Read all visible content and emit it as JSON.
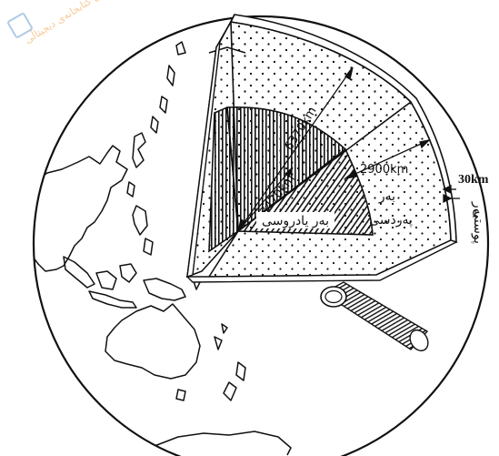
{
  "labels": {
    "core_radius": "3470km",
    "earth_radius": "6370km",
    "mantle_depth": "2900km",
    "crust_depth": "30km",
    "mantle_name_1": "بەر",
    "mantle_name_2": "پەردسی",
    "core_name": "بەر یادروسی",
    "crust_name_1": "بەر",
    "crust_name_2": "پوستی"
  },
  "watermark": {
    "text": "ئەکادیمیای کوردی کتابخانەی دیجیتاڵی"
  }
}
